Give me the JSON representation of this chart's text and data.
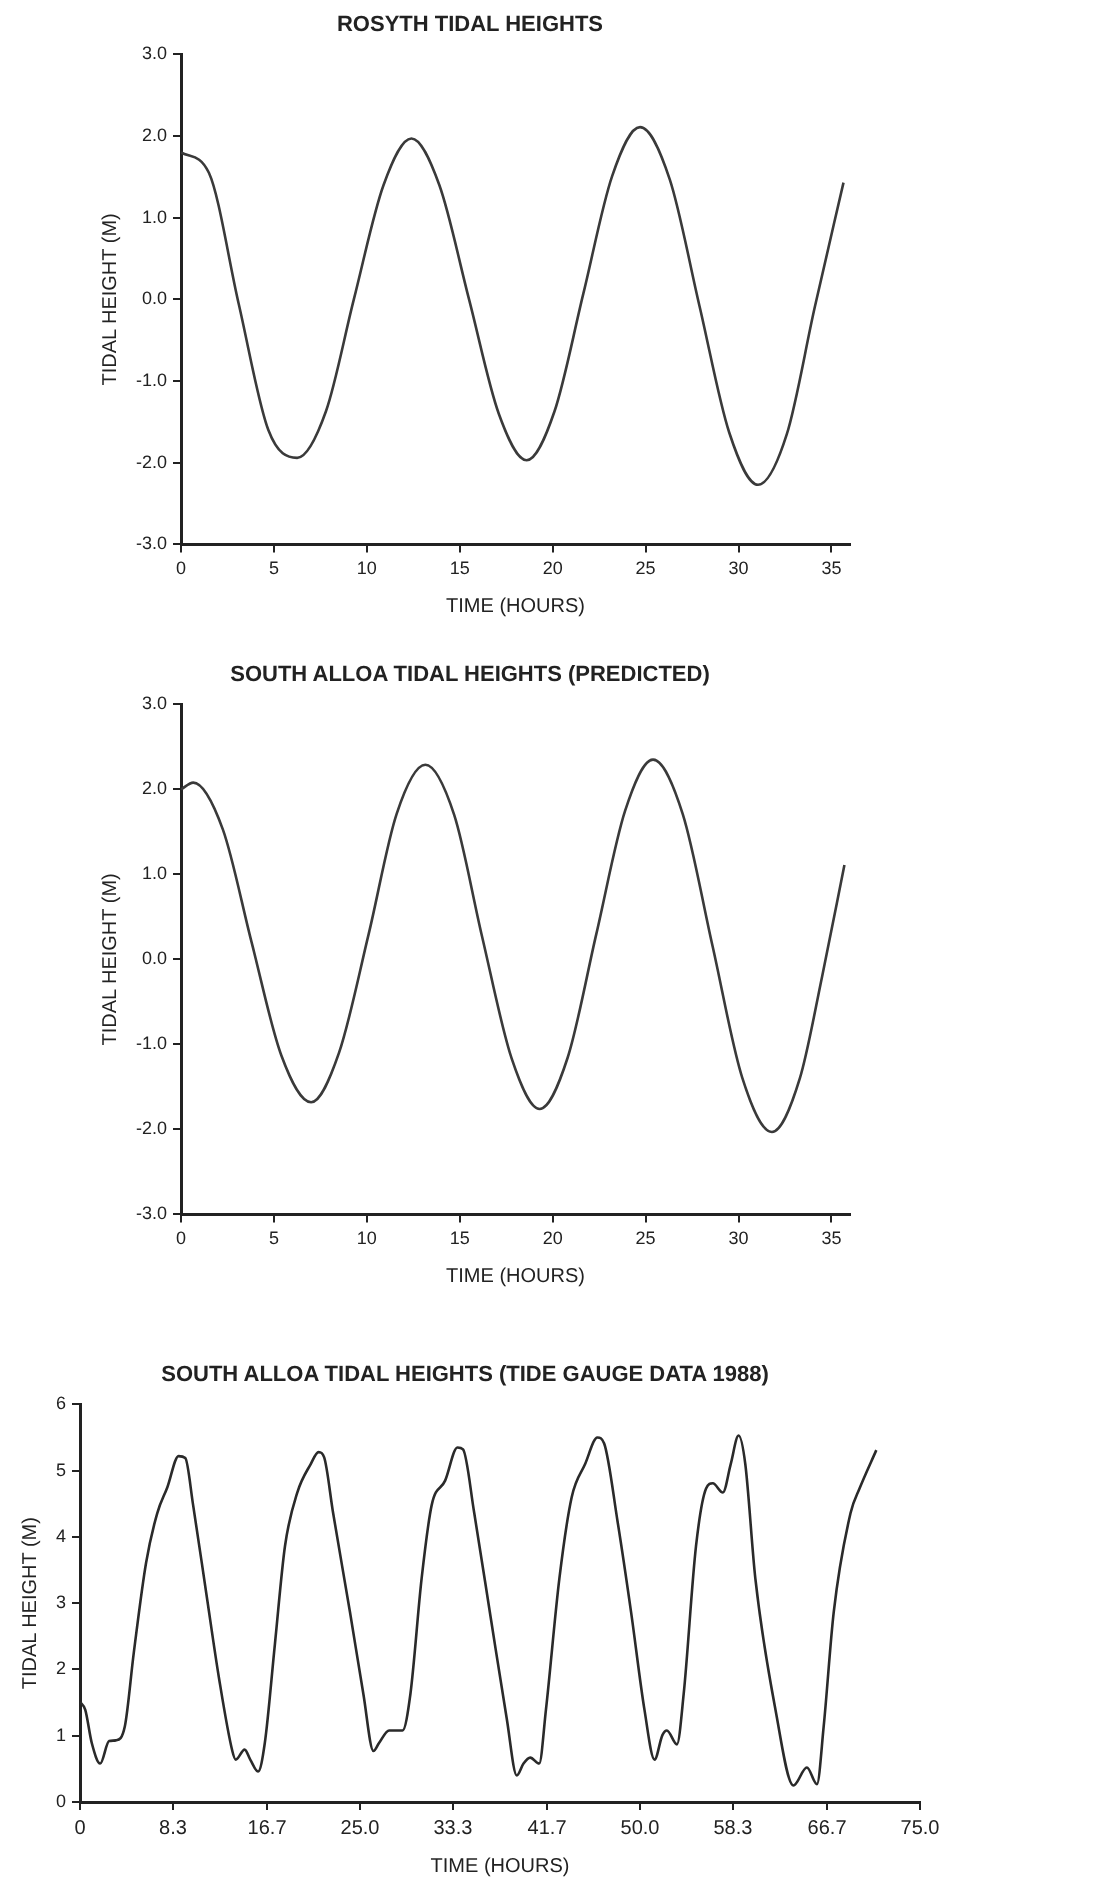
{
  "chart_data": [
    {
      "type": "line",
      "title": "ROSYTH TIDAL HEIGHTS",
      "xlabel": "TIME (HOURS)",
      "ylabel": "TIDAL HEIGHT (M)",
      "xlim": [
        0,
        36
      ],
      "ylim": [
        -3,
        3
      ],
      "xticks": [
        0,
        5,
        10,
        15,
        20,
        25,
        30,
        35
      ],
      "yticks": [
        {
          "value": -3,
          "label": "-3.0"
        },
        {
          "value": -2,
          "label": "-2.0"
        },
        {
          "value": -1,
          "label": "-1.0"
        },
        {
          "value": 0,
          "label": "0.0"
        },
        {
          "value": 1,
          "label": "1.0"
        },
        {
          "value": 2,
          "label": "2.0"
        },
        {
          "value": 3,
          "label": "3.0"
        }
      ],
      "x": [
        0,
        1.5,
        3.1,
        4.7,
        6.25,
        7.8,
        9.3,
        10.9,
        12.4,
        13.9,
        15.5,
        17.1,
        18.6,
        20.1,
        21.65,
        23.2,
        24.7,
        26.3,
        27.9,
        29.5,
        31.05,
        32.6,
        34.1,
        35.65
      ],
      "series": [
        {
          "color": "#3a3a3a",
          "values": [
            1.8,
            1.55,
            -0.05,
            -1.6,
            -1.94,
            -1.37,
            0.0,
            1.4,
            1.97,
            1.4,
            0.0,
            -1.4,
            -1.97,
            -1.37,
            0.07,
            1.51,
            2.11,
            1.47,
            -0.08,
            -1.63,
            -2.27,
            -1.65,
            -0.1,
            1.43
          ]
        }
      ]
    },
    {
      "type": "line",
      "title": "SOUTH ALLOA TIDAL HEIGHTS (PREDICTED)",
      "xlabel": "TIME (HOURS)",
      "ylabel": "TIDAL HEIGHT (M)",
      "xlim": [
        0,
        36
      ],
      "ylim": [
        -3,
        3
      ],
      "xticks": [
        0,
        5,
        10,
        15,
        20,
        25,
        30,
        35
      ],
      "yticks": [
        {
          "value": -3,
          "label": "-3.0"
        },
        {
          "value": -2,
          "label": "-2.0"
        },
        {
          "value": -1,
          "label": "-1.0"
        },
        {
          "value": 0,
          "label": "0.0"
        },
        {
          "value": 1,
          "label": "1.0"
        },
        {
          "value": 2,
          "label": "2.0"
        },
        {
          "value": 3,
          "label": "3.0"
        }
      ],
      "x": [
        0,
        0.66,
        2.25,
        3.8,
        5.4,
        7.0,
        8.5,
        10.1,
        11.6,
        13.15,
        14.7,
        16.2,
        17.8,
        19.3,
        20.8,
        22.35,
        23.9,
        25.4,
        27,
        28.6,
        30.2,
        31.8,
        33.3,
        34.5,
        35.7
      ],
      "series": [
        {
          "color": "#3a3a3a",
          "values": [
            2.0,
            2.08,
            1.53,
            0.2,
            -1.13,
            -1.68,
            -1.1,
            0.3,
            1.71,
            2.29,
            1.7,
            0.27,
            -1.17,
            -1.76,
            -1.16,
            0.3,
            1.75,
            2.35,
            1.71,
            0.16,
            -1.39,
            -2.03,
            -1.4,
            -0.2,
            1.11
          ]
        }
      ]
    },
    {
      "type": "line",
      "title": "SOUTH ALLOA TIDAL HEIGHTS (TIDE GAUGE DATA 1988)",
      "xlabel": "TIME (HOURS)",
      "ylabel": "TIDAL HEIGHT (M)",
      "xlim": [
        0,
        75
      ],
      "ylim": [
        0,
        6
      ],
      "xticks": [
        0,
        8.3,
        16.7,
        {
          "value": 25,
          "label": "25.0"
        },
        33.3,
        41.7,
        {
          "value": 50,
          "label": "50.0"
        },
        58.3,
        66.7,
        {
          "value": 75,
          "label": "75.0"
        }
      ],
      "yticks": [
        0,
        1,
        2,
        3,
        4,
        5,
        6
      ],
      "x": [
        0,
        0.47,
        1.05,
        1.8,
        2.6,
        3.2,
        4.0,
        4.8,
        5.9,
        6.9,
        7.8,
        8.8,
        9.4,
        10.1,
        11.3,
        12.4,
        13.6,
        13.9,
        14.7,
        15.2,
        15.9,
        16.5,
        17.4,
        18.3,
        19.4,
        20.6,
        21.3,
        21.8,
        22.6,
        24.1,
        25.3,
        26.2,
        26.7,
        27.6,
        28.8,
        29.5,
        30.5,
        31.4,
        32.6,
        33.7,
        34.2,
        35.2,
        36.7,
        38.1,
        39.0,
        39.6,
        40.2,
        41.0,
        41.6,
        42.8,
        43.9,
        45.1,
        46.2,
        46.8,
        48.0,
        49.2,
        50.4,
        51.3,
        52.0,
        52.4,
        53.3,
        53.9,
        55.0,
        55.9,
        56.5,
        57.4,
        58.1,
        58.8,
        59.4,
        60.3,
        62.1,
        63.7,
        64.9,
        65.8,
        66.4,
        67.3,
        68.8,
        69.6,
        71.1
      ],
      "series": [
        {
          "color": "#2a2a2a",
          "values": [
            1.51,
            1.39,
            0.89,
            0.58,
            0.92,
            0.93,
            1.14,
            2.25,
            3.61,
            4.36,
            4.75,
            5.22,
            5.19,
            4.48,
            3.12,
            1.88,
            0.77,
            0.64,
            0.79,
            0.64,
            0.46,
            0.89,
            2.38,
            3.86,
            4.67,
            5.1,
            5.28,
            5.2,
            4.36,
            2.87,
            1.63,
            0.77,
            0.89,
            1.08,
            1.08,
            1.63,
            3.37,
            4.48,
            4.85,
            5.35,
            5.32,
            4.36,
            2.75,
            1.26,
            0.4,
            0.58,
            0.67,
            0.58,
            1.39,
            3.37,
            4.6,
            5.1,
            5.5,
            5.41,
            4.23,
            2.87,
            1.39,
            0.64,
            1.01,
            1.08,
            0.87,
            1.63,
            3.86,
            4.73,
            4.81,
            4.67,
            5.1,
            5.53,
            5.1,
            3.37,
            1.39,
            0.25,
            0.52,
            0.27,
            1.14,
            2.87,
            4.36,
            4.73,
            5.31
          ]
        }
      ]
    }
  ]
}
